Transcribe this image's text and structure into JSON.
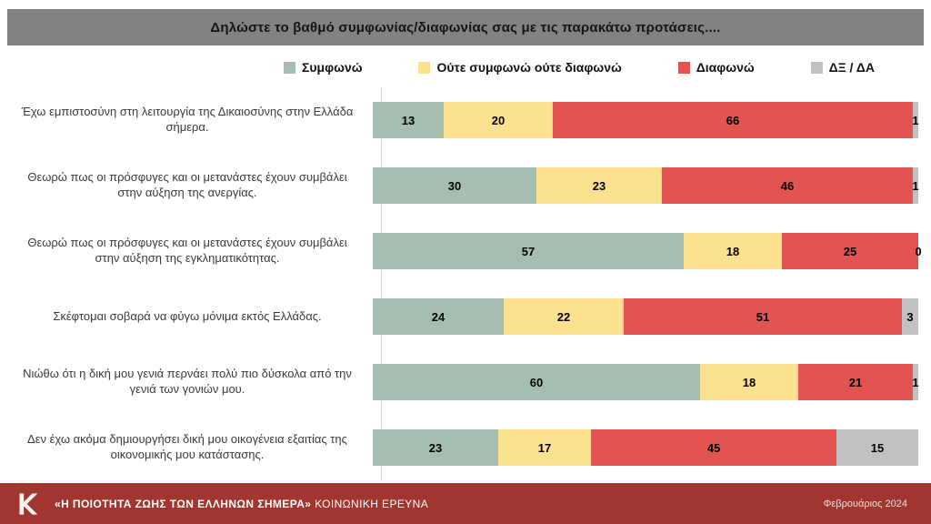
{
  "header": {
    "title": "Δηλώστε το βαθμό συμφωνίας/διαφωνίας σας με τις παρακάτω προτάσεις...."
  },
  "legend": [
    {
      "label": "Συμφωνώ",
      "color": "#a6beb2"
    },
    {
      "label": "Ούτε συμφωνώ ούτε διαφωνώ",
      "color": "#fce18e"
    },
    {
      "label": "Διαφωνώ",
      "color": "#e15451"
    },
    {
      "label": "ΔΞ / ΔΑ",
      "color": "#c1c1c1"
    }
  ],
  "chart_data": {
    "type": "bar",
    "orientation": "horizontal",
    "stacked": true,
    "xlim": [
      0,
      100
    ],
    "legend_position": "top",
    "series_names": [
      "Συμφωνώ",
      "Ούτε συμφωνώ ούτε διαφωνώ",
      "Διαφωνώ",
      "ΔΞ / ΔΑ"
    ],
    "rows": [
      {
        "label": "Έχω εμπιστοσύνη στη λειτουργία της Δικαιοσύνης στην Ελλάδα σήμερα.",
        "values": [
          13,
          20,
          66,
          1
        ]
      },
      {
        "label": "Θεωρώ πως οι πρόσφυγες και οι μετανάστες έχουν συμβάλει στην αύξηση της ανεργίας.",
        "values": [
          30,
          23,
          46,
          1
        ]
      },
      {
        "label": "Θεωρώ πως οι πρόσφυγες και οι μετανάστες έχουν συμβάλει στην αύξηση της εγκληματικότητας.",
        "values": [
          57,
          18,
          25,
          0
        ]
      },
      {
        "label": "Σκέφτομαι σοβαρά να φύγω μόνιμα εκτός Ελλάδας.",
        "values": [
          24,
          22,
          51,
          3
        ]
      },
      {
        "label": "Νιώθω ότι η δική μου γενιά περνάει πολύ πιο δύσκολα από την γενιά των γονιών μου.",
        "values": [
          60,
          18,
          21,
          1
        ]
      },
      {
        "label": "Δεν έχω ακόμα δημιουργήσει δική μου οικογένεια εξαιτίας της οικονομικής μου κατάστασης.",
        "values": [
          23,
          17,
          45,
          15
        ]
      }
    ]
  },
  "footer": {
    "survey_title": "«Η ΠΟΙΟΤΗΤΑ ΖΩΗΣ ΤΩΝ ΕΛΛΗΝΩΝ ΣΗΜΕΡΑ»",
    "survey_subtitle": "ΚΟΙΝΩΝΙΚΗ ΕΡΕΥΝΑ",
    "date": "Φεβρουάριος 2024"
  }
}
